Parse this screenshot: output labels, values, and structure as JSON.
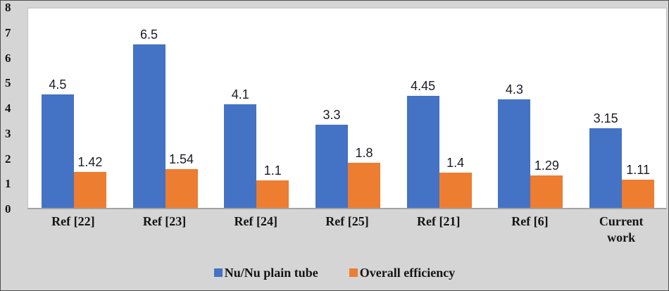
{
  "chart_data": {
    "type": "bar",
    "categories": [
      "Ref [22]",
      "Ref [23]",
      "Ref [24]",
      "Ref [25]",
      "Ref [21]",
      "Ref [6]",
      "Current\nwork"
    ],
    "series": [
      {
        "name": "Nu/Nu plain tube",
        "color": "#4472C4",
        "values": [
          4.5,
          6.5,
          4.1,
          3.3,
          4.45,
          4.3,
          3.15
        ],
        "labels": [
          "4.5",
          "6.5",
          "4.1",
          "3.3",
          "4.45",
          "4.3",
          "3.15"
        ]
      },
      {
        "name": "Overall efficiency",
        "color": "#ED7D31",
        "values": [
          1.42,
          1.54,
          1.1,
          1.8,
          1.4,
          1.29,
          1.11
        ],
        "labels": [
          "1.42",
          "1.54",
          "1.1",
          "1.8",
          "1.4",
          "1.29",
          "1.11"
        ]
      }
    ],
    "title": "",
    "xlabel": "",
    "ylabel": "",
    "ylim": [
      0,
      8
    ],
    "yticks": [
      0,
      1,
      2,
      3,
      4,
      5,
      6,
      7,
      8
    ],
    "grid": false,
    "legend_position": "bottom",
    "data_labels_shown": true
  },
  "colors": {
    "figure_background": "#d5d5d5",
    "plot_background": "#ffffff",
    "series_blue": "#4472C4",
    "series_orange": "#ED7D31",
    "axis_line": "#a3a3a3",
    "text": "#141414",
    "data_label_text": "#1b1b26",
    "figure_border": "#4f4f4f"
  }
}
